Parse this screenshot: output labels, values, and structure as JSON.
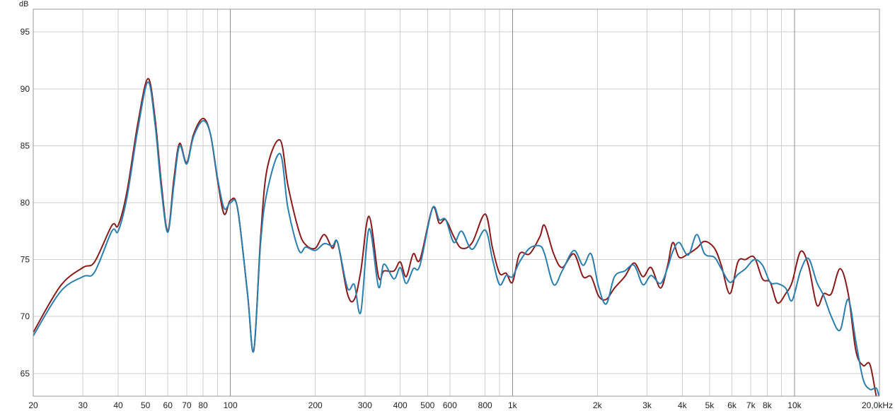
{
  "chart_data": {
    "type": "line",
    "title": "",
    "xlabel": "",
    "ylabel": "dB",
    "x_scale": "log",
    "xlim": [
      20,
      20000
    ],
    "ylim": [
      63,
      97
    ],
    "grid": true,
    "legend": "none",
    "x_tick_labels": [
      {
        "x": 20,
        "label": "20",
        "major": true
      },
      {
        "x": 30,
        "label": "30",
        "major": false
      },
      {
        "x": 40,
        "label": "40",
        "major": false
      },
      {
        "x": 50,
        "label": "50",
        "major": false
      },
      {
        "x": 60,
        "label": "60",
        "major": false
      },
      {
        "x": 70,
        "label": "70",
        "major": false
      },
      {
        "x": 80,
        "label": "80",
        "major": false
      },
      {
        "x": 100,
        "label": "100",
        "major": true
      },
      {
        "x": 200,
        "label": "200",
        "major": false
      },
      {
        "x": 300,
        "label": "300",
        "major": false
      },
      {
        "x": 400,
        "label": "400",
        "major": false
      },
      {
        "x": 500,
        "label": "500",
        "major": false
      },
      {
        "x": 600,
        "label": "600",
        "major": false
      },
      {
        "x": 800,
        "label": "800",
        "major": false
      },
      {
        "x": 1000,
        "label": "1k",
        "major": true
      },
      {
        "x": 2000,
        "label": "2k",
        "major": false
      },
      {
        "x": 3000,
        "label": "3k",
        "major": false
      },
      {
        "x": 4000,
        "label": "4k",
        "major": false
      },
      {
        "x": 5000,
        "label": "5k",
        "major": false
      },
      {
        "x": 6000,
        "label": "6k",
        "major": false
      },
      {
        "x": 7000,
        "label": "7k",
        "major": false
      },
      {
        "x": 8000,
        "label": "8k",
        "major": false
      },
      {
        "x": 10000,
        "label": "10k",
        "major": true
      },
      {
        "x": 20000,
        "label": "20,0kHz",
        "major": false
      }
    ],
    "x_minor_gridlines": [
      90,
      900,
      9000
    ],
    "y_ticks": [
      65,
      70,
      75,
      80,
      85,
      90,
      95
    ],
    "series": [
      {
        "color": "#8b1a1a",
        "points": [
          [
            20,
            68.6
          ],
          [
            25,
            72.7
          ],
          [
            30,
            74.3
          ],
          [
            33,
            74.8
          ],
          [
            38,
            78.0
          ],
          [
            40,
            78.0
          ],
          [
            43,
            81.0
          ],
          [
            47,
            87.0
          ],
          [
            51,
            90.9
          ],
          [
            54,
            87.5
          ],
          [
            57,
            81.5
          ],
          [
            60,
            77.5
          ],
          [
            63,
            82.0
          ],
          [
            66,
            85.2
          ],
          [
            70,
            83.5
          ],
          [
            74,
            86.0
          ],
          [
            80,
            87.4
          ],
          [
            85,
            86.0
          ],
          [
            90,
            82.0
          ],
          [
            95,
            79.0
          ],
          [
            100,
            80.2
          ],
          [
            106,
            79.5
          ],
          [
            115,
            72.0
          ],
          [
            121,
            67.0
          ],
          [
            128,
            77.0
          ],
          [
            135,
            83.0
          ],
          [
            150,
            85.5
          ],
          [
            160,
            81.5
          ],
          [
            175,
            77.5
          ],
          [
            185,
            76.3
          ],
          [
            200,
            76.0
          ],
          [
            215,
            77.2
          ],
          [
            230,
            76.0
          ],
          [
            240,
            76.5
          ],
          [
            260,
            72.0
          ],
          [
            275,
            71.5
          ],
          [
            290,
            74.0
          ],
          [
            310,
            78.8
          ],
          [
            335,
            73.5
          ],
          [
            350,
            74.0
          ],
          [
            380,
            74.0
          ],
          [
            400,
            74.8
          ],
          [
            420,
            73.5
          ],
          [
            445,
            75.5
          ],
          [
            470,
            75.0
          ],
          [
            520,
            79.5
          ],
          [
            550,
            78.2
          ],
          [
            580,
            78.5
          ],
          [
            620,
            77.0
          ],
          [
            660,
            76.0
          ],
          [
            720,
            76.5
          ],
          [
            800,
            79.0
          ],
          [
            850,
            76.0
          ],
          [
            900,
            73.8
          ],
          [
            950,
            73.8
          ],
          [
            1000,
            73.0
          ],
          [
            1060,
            75.5
          ],
          [
            1150,
            75.5
          ],
          [
            1250,
            77.0
          ],
          [
            1300,
            78.0
          ],
          [
            1400,
            75.5
          ],
          [
            1500,
            74.3
          ],
          [
            1650,
            75.5
          ],
          [
            1780,
            73.5
          ],
          [
            1900,
            73.5
          ],
          [
            2020,
            71.8
          ],
          [
            2150,
            71.5
          ],
          [
            2300,
            72.5
          ],
          [
            2500,
            73.5
          ],
          [
            2700,
            74.7
          ],
          [
            2900,
            73.5
          ],
          [
            3100,
            74.3
          ],
          [
            3350,
            72.5
          ],
          [
            3550,
            74.5
          ],
          [
            3700,
            76.5
          ],
          [
            3900,
            75.2
          ],
          [
            4200,
            75.5
          ],
          [
            4500,
            76.0
          ],
          [
            4800,
            76.6
          ],
          [
            5200,
            76.0
          ],
          [
            5500,
            74.5
          ],
          [
            5900,
            72.0
          ],
          [
            6300,
            74.8
          ],
          [
            6700,
            75.0
          ],
          [
            7200,
            75.2
          ],
          [
            7700,
            73.3
          ],
          [
            8200,
            73.0
          ],
          [
            8700,
            71.2
          ],
          [
            9300,
            72.0
          ],
          [
            9800,
            73.0
          ],
          [
            10500,
            75.7
          ],
          [
            11200,
            74.5
          ],
          [
            12000,
            71.0
          ],
          [
            12700,
            72.0
          ],
          [
            13500,
            72.0
          ],
          [
            14500,
            74.2
          ],
          [
            15500,
            72.0
          ],
          [
            16500,
            67.0
          ],
          [
            17500,
            65.7
          ],
          [
            18500,
            65.8
          ],
          [
            19500,
            63.0
          ],
          [
            20000,
            62.6
          ]
        ]
      },
      {
        "color": "#2a7fb0",
        "points": [
          [
            20,
            68.3
          ],
          [
            25,
            72.2
          ],
          [
            30,
            73.5
          ],
          [
            33,
            73.9
          ],
          [
            38,
            77.5
          ],
          [
            40,
            77.5
          ],
          [
            43,
            80.5
          ],
          [
            47,
            86.5
          ],
          [
            51,
            90.6
          ],
          [
            54,
            87.0
          ],
          [
            57,
            81.0
          ],
          [
            60,
            77.4
          ],
          [
            63,
            81.5
          ],
          [
            66,
            85.0
          ],
          [
            70,
            83.4
          ],
          [
            74,
            85.8
          ],
          [
            80,
            87.2
          ],
          [
            85,
            86.0
          ],
          [
            90,
            82.2
          ],
          [
            95,
            79.5
          ],
          [
            100,
            80.0
          ],
          [
            106,
            79.5
          ],
          [
            115,
            72.0
          ],
          [
            121,
            67.0
          ],
          [
            128,
            76.5
          ],
          [
            135,
            81.0
          ],
          [
            150,
            84.3
          ],
          [
            160,
            79.5
          ],
          [
            175,
            75.8
          ],
          [
            185,
            76.1
          ],
          [
            200,
            75.8
          ],
          [
            215,
            76.4
          ],
          [
            230,
            76.2
          ],
          [
            240,
            76.5
          ],
          [
            260,
            72.5
          ],
          [
            275,
            72.8
          ],
          [
            290,
            70.4
          ],
          [
            310,
            77.7
          ],
          [
            335,
            72.6
          ],
          [
            350,
            74.6
          ],
          [
            380,
            73.3
          ],
          [
            400,
            74.3
          ],
          [
            420,
            72.9
          ],
          [
            445,
            74.2
          ],
          [
            470,
            74.5
          ],
          [
            520,
            79.5
          ],
          [
            550,
            78.5
          ],
          [
            580,
            78.5
          ],
          [
            620,
            76.5
          ],
          [
            660,
            77.5
          ],
          [
            720,
            75.9
          ],
          [
            800,
            77.6
          ],
          [
            850,
            75.0
          ],
          [
            900,
            72.8
          ],
          [
            950,
            73.6
          ],
          [
            1000,
            73.5
          ],
          [
            1060,
            74.8
          ],
          [
            1150,
            76.0
          ],
          [
            1250,
            76.2
          ],
          [
            1300,
            75.5
          ],
          [
            1400,
            72.8
          ],
          [
            1500,
            74.0
          ],
          [
            1650,
            75.8
          ],
          [
            1780,
            74.5
          ],
          [
            1900,
            75.5
          ],
          [
            2020,
            72.6
          ],
          [
            2150,
            71.1
          ],
          [
            2300,
            73.5
          ],
          [
            2500,
            74.0
          ],
          [
            2700,
            74.5
          ],
          [
            2900,
            72.8
          ],
          [
            3100,
            73.6
          ],
          [
            3350,
            72.9
          ],
          [
            3550,
            74.3
          ],
          [
            3700,
            75.7
          ],
          [
            3900,
            76.5
          ],
          [
            4200,
            75.4
          ],
          [
            4500,
            77.2
          ],
          [
            4800,
            75.5
          ],
          [
            5200,
            75.2
          ],
          [
            5500,
            74.2
          ],
          [
            5900,
            73.0
          ],
          [
            6300,
            73.7
          ],
          [
            6700,
            74.2
          ],
          [
            7200,
            75.0
          ],
          [
            7700,
            74.5
          ],
          [
            8200,
            73.0
          ],
          [
            8700,
            72.9
          ],
          [
            9300,
            72.5
          ],
          [
            9800,
            71.4
          ],
          [
            10500,
            74.0
          ],
          [
            11200,
            75.1
          ],
          [
            12000,
            73.0
          ],
          [
            12700,
            71.8
          ],
          [
            13500,
            70.0
          ],
          [
            14500,
            68.8
          ],
          [
            15500,
            71.5
          ],
          [
            16500,
            67.8
          ],
          [
            17500,
            64.5
          ],
          [
            18500,
            63.6
          ],
          [
            19500,
            63.7
          ],
          [
            20000,
            62.8
          ]
        ]
      }
    ]
  }
}
